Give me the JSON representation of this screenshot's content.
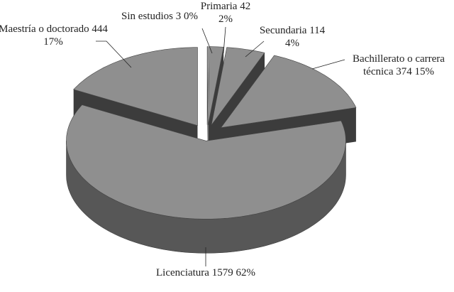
{
  "chart_data": {
    "type": "pie3d",
    "categories": [
      "Sin estudios",
      "Primaria",
      "Secundaria",
      "Bachillerato o carrera técnica",
      "Licenciatura",
      "Maestría o doctorado"
    ],
    "values": [
      3,
      42,
      114,
      374,
      1579,
      444
    ],
    "percent_labels": [
      "0%",
      "2%",
      "4%",
      "15%",
      "62%",
      "17%"
    ],
    "top_color": "#8f8f8f",
    "side_color": "#575757",
    "wall_color": "#3c3c3c"
  }
}
